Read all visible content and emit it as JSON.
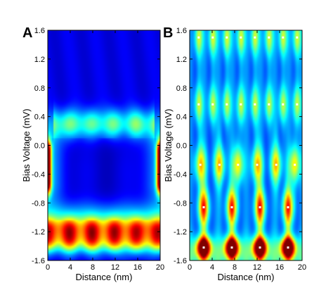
{
  "chart_data": [
    {
      "panel": "A",
      "type": "heatmap",
      "title": "",
      "xlabel": "Distance (nm)",
      "ylabel": "Bias Voltage (mV)",
      "xlim": [
        0,
        20
      ],
      "ylim": [
        -1.6,
        1.6
      ],
      "x_ticks": [
        "0",
        "4",
        "8",
        "12",
        "16",
        "20"
      ],
      "y_ticks": [
        "-1.6",
        "-1.2",
        "-0.8",
        "-0.4",
        "0.0",
        "0.4",
        "0.8",
        "1.2",
        "1.6"
      ],
      "colormap": "jet",
      "features": [
        {
          "kind": "horizontal_band",
          "bias_mV": -1.32,
          "x_range": [
            0,
            20
          ],
          "intensity": 0.7,
          "width_mV": 0.12
        },
        {
          "kind": "horizontal_band",
          "bias_mV": -1.13,
          "x_range": [
            0,
            20
          ],
          "intensity": 0.45,
          "width_mV": 0.1
        },
        {
          "kind": "horizontal_band",
          "bias_mV": 0.3,
          "x_range": [
            1,
            19
          ],
          "intensity": 0.4,
          "width_mV": 0.14
        },
        {
          "kind": "edge_state",
          "distance_nm": 0,
          "bias_range_mV": [
            -0.65,
            0.05
          ],
          "intensity": 0.9
        },
        {
          "kind": "edge_state",
          "distance_nm": 20,
          "bias_range_mV": [
            -0.65,
            0.05
          ],
          "intensity": 0.9
        }
      ]
    },
    {
      "panel": "B",
      "type": "heatmap",
      "title": "",
      "xlabel": "Distance (nm)",
      "ylabel": "Bias Voltage (mV)",
      "xlim": [
        0,
        20
      ],
      "ylim": [
        -1.6,
        1.6
      ],
      "x_ticks": [
        "0",
        "4",
        "8",
        "12",
        "16",
        "20"
      ],
      "y_ticks": [
        "-1.6",
        "-1.2",
        "-0.8",
        "-0.4",
        "0.0",
        "0.4",
        "0.8",
        "1.2",
        "1.6"
      ],
      "colormap": "jet",
      "marker_color": "#ffffff",
      "markers": [
        {
          "x": 1.6,
          "y": 1.5
        },
        {
          "x": 4.1,
          "y": 1.5
        },
        {
          "x": 6.6,
          "y": 1.5
        },
        {
          "x": 9.1,
          "y": 1.5
        },
        {
          "x": 11.6,
          "y": 1.5
        },
        {
          "x": 14.1,
          "y": 1.5
        },
        {
          "x": 16.6,
          "y": 1.5
        },
        {
          "x": 19.1,
          "y": 1.5
        },
        {
          "x": 1.6,
          "y": 0.57
        },
        {
          "x": 4.1,
          "y": 0.57
        },
        {
          "x": 6.6,
          "y": 0.57
        },
        {
          "x": 9.1,
          "y": 0.57
        },
        {
          "x": 11.6,
          "y": 0.57
        },
        {
          "x": 14.1,
          "y": 0.57
        },
        {
          "x": 16.6,
          "y": 0.57
        },
        {
          "x": 19.1,
          "y": 0.57
        },
        {
          "x": 1.9,
          "y": -0.27
        },
        {
          "x": 5.3,
          "y": -0.27
        },
        {
          "x": 8.6,
          "y": -0.27
        },
        {
          "x": 12.0,
          "y": -0.27
        },
        {
          "x": 15.4,
          "y": -0.27
        },
        {
          "x": 18.7,
          "y": -0.27
        },
        {
          "x": 2.5,
          "y": -0.86
        },
        {
          "x": 7.5,
          "y": -0.86
        },
        {
          "x": 12.5,
          "y": -0.86
        },
        {
          "x": 17.5,
          "y": -0.86
        },
        {
          "x": 2.5,
          "y": -1.42
        },
        {
          "x": 7.5,
          "y": -1.42
        },
        {
          "x": 12.5,
          "y": -1.42
        },
        {
          "x": 17.5,
          "y": -1.42
        }
      ],
      "features": [
        {
          "kind": "hotspot_row",
          "bias_mV": -1.42,
          "x": [
            2.5,
            7.5,
            12.5,
            17.5
          ],
          "intensity": 0.95
        },
        {
          "kind": "spot_row",
          "bias_mV": -0.86,
          "x": [
            2.5,
            7.5,
            12.5,
            17.5
          ],
          "intensity": 0.5
        },
        {
          "kind": "spot_row",
          "bias_mV": -0.27,
          "x": [
            1.9,
            5.3,
            8.6,
            12.0,
            15.4,
            18.7
          ],
          "intensity": 0.38
        },
        {
          "kind": "spot_row",
          "bias_mV": 0.57,
          "x": [
            1.6,
            4.1,
            6.6,
            9.1,
            11.6,
            14.1,
            16.6,
            19.1
          ],
          "intensity": 0.3
        },
        {
          "kind": "spot_row",
          "bias_mV": 1.5,
          "x": [
            1.6,
            4.1,
            6.6,
            9.1,
            11.6,
            14.1,
            16.6,
            19.1
          ],
          "intensity": 0.32
        }
      ]
    }
  ]
}
